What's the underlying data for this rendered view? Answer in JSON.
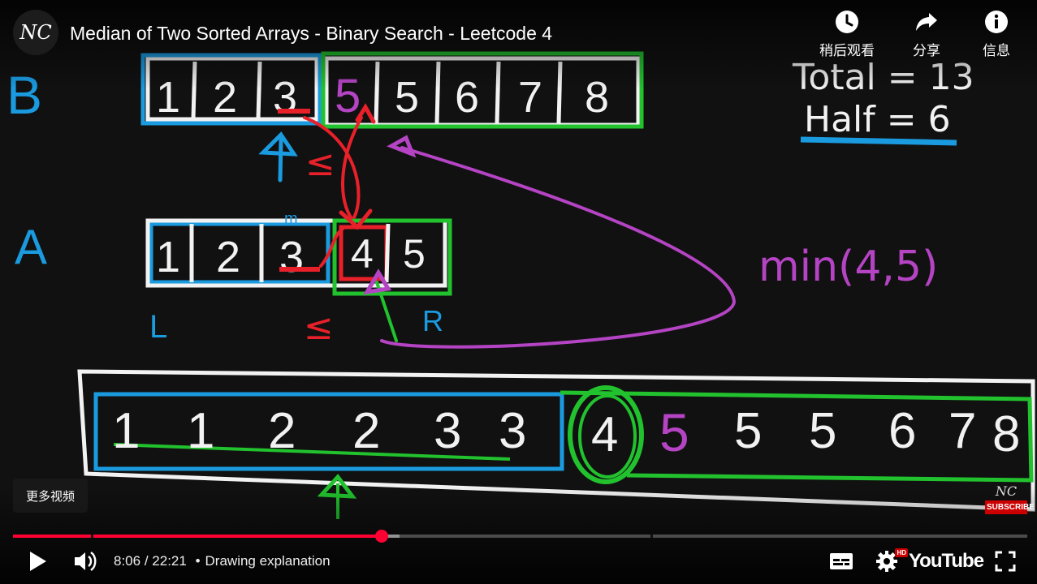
{
  "header": {
    "channel_logo": "NC",
    "title": "Median of Two Sorted Arrays - Binary Search - Leetcode 4",
    "actions": [
      {
        "icon": "clock-icon",
        "label": "稍后观看"
      },
      {
        "icon": "share-icon",
        "label": "分享"
      },
      {
        "icon": "info-icon",
        "label": "信息"
      }
    ]
  },
  "board": {
    "label_b": "B",
    "array_b": [
      "1",
      "2",
      "3",
      "5",
      "5",
      "6",
      "7",
      "8"
    ],
    "label_a": "A",
    "array_a": [
      "1",
      "2",
      "3",
      "4",
      "5"
    ],
    "mid_label": "m",
    "le_1": "≤",
    "le_2": "≤",
    "left_label": "L",
    "right_label": "R",
    "total_text": "Total = 13",
    "half_text": "Half = 6",
    "min_text": "min(4,5)",
    "merged": [
      "1",
      "1",
      "2",
      "2",
      "3",
      "3",
      "4",
      "5",
      "5",
      "5",
      "6",
      "7",
      "8"
    ],
    "colors": {
      "blue": "#1a9be0",
      "green": "#22c22e",
      "red": "#e8202a",
      "purple": "#b544c4",
      "white": "#f2f2f2"
    }
  },
  "overlay": {
    "more_videos": "更多视频",
    "watermark_logo": "NC",
    "subscribe": "SUBSCRIBE"
  },
  "player": {
    "progress_fraction": 0.3631,
    "buffered_fraction": 0.381,
    "time_current": "8:06",
    "time_separator": "/",
    "time_total": "22:21",
    "chapter_separator": "•",
    "chapter": "Drawing explanation",
    "hd_badge": "HD",
    "brand": "YouTube",
    "icons": {
      "play": "play-icon",
      "volume": "volume-icon",
      "captions": "captions-icon",
      "settings": "gear-icon",
      "fullscreen": "fullscreen-icon"
    }
  }
}
